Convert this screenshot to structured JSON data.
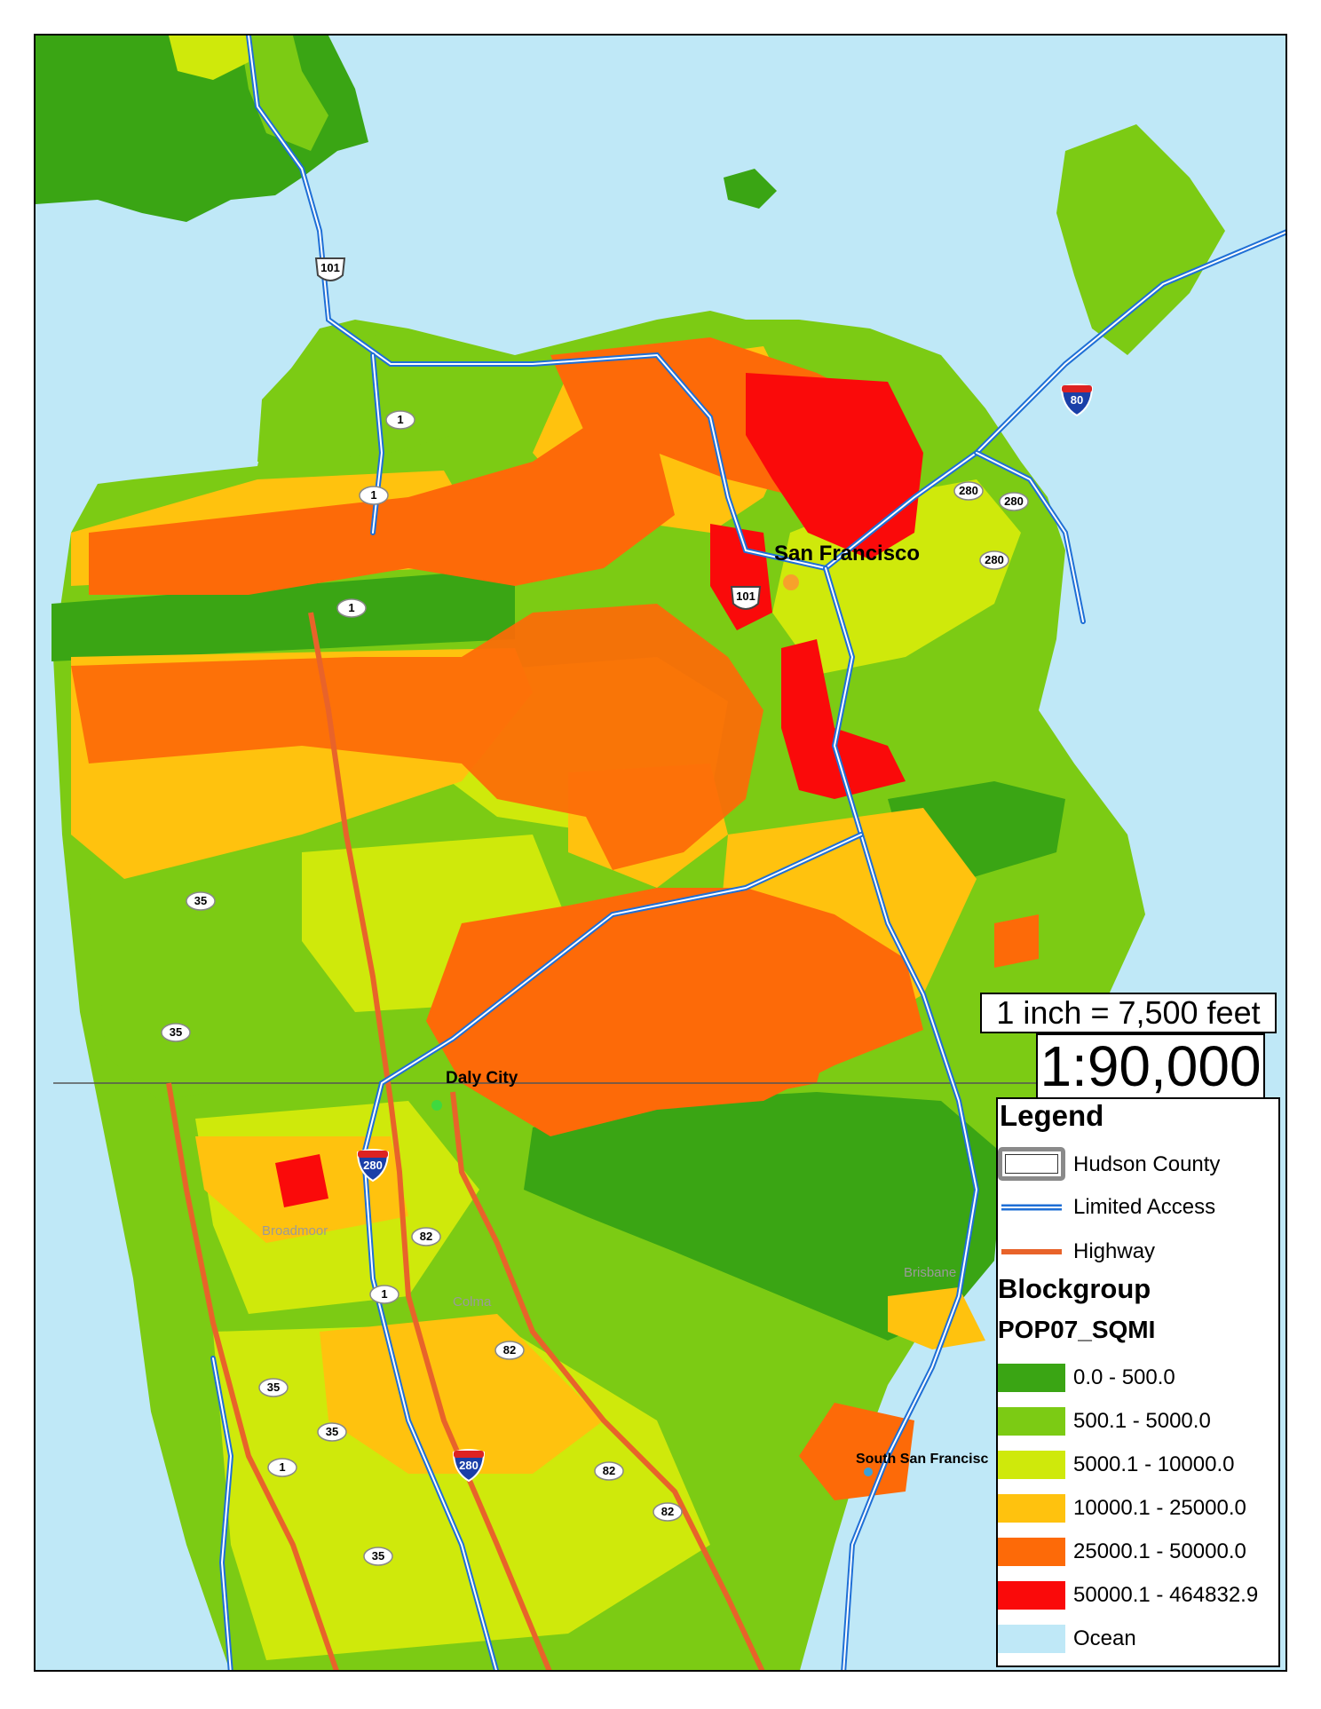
{
  "map": {
    "cities": [
      {
        "name": "San Francisco"
      },
      {
        "name": "Daly City"
      },
      {
        "name": "South San Francisc"
      }
    ],
    "towns": [
      {
        "name": "Broadmoor"
      },
      {
        "name": "Colma"
      },
      {
        "name": "Brisbane"
      }
    ],
    "route_shields": [
      "101",
      "101",
      "1",
      "1",
      "1",
      "1",
      "1",
      "280",
      "280",
      "280",
      "35",
      "35",
      "35",
      "35",
      "35",
      "82",
      "82",
      "82",
      "82",
      "280",
      "280",
      "80"
    ]
  },
  "scale": {
    "text": "1 inch = 7,500 feet",
    "ratio": "1:90,000"
  },
  "legend": {
    "title": "Legend",
    "lines": [
      {
        "label": "Hudson County",
        "kind": "boundary"
      },
      {
        "label": "Limited Access",
        "kind": "limited",
        "color": "#1f6fd6"
      },
      {
        "label": "Highway",
        "kind": "highway",
        "color": "#e8632a"
      }
    ],
    "group_title": "Blockgroup",
    "field_title": "POP07_SQMI",
    "classes": [
      {
        "label": "0.0 - 500.0",
        "color": "#3aa514"
      },
      {
        "label": "500.1 - 5000.0",
        "color": "#7ccb14"
      },
      {
        "label": "5000.1 - 10000.0",
        "color": "#cfe90b"
      },
      {
        "label": "10000.1 - 25000.0",
        "color": "#ffc20e"
      },
      {
        "label": "25000.1 - 50000.0",
        "color": "#fd6a08"
      },
      {
        "label": "50000.1 - 464832.9",
        "color": "#fa0a0a"
      },
      {
        "label": "Ocean",
        "color": "#bfe8f7"
      }
    ]
  }
}
